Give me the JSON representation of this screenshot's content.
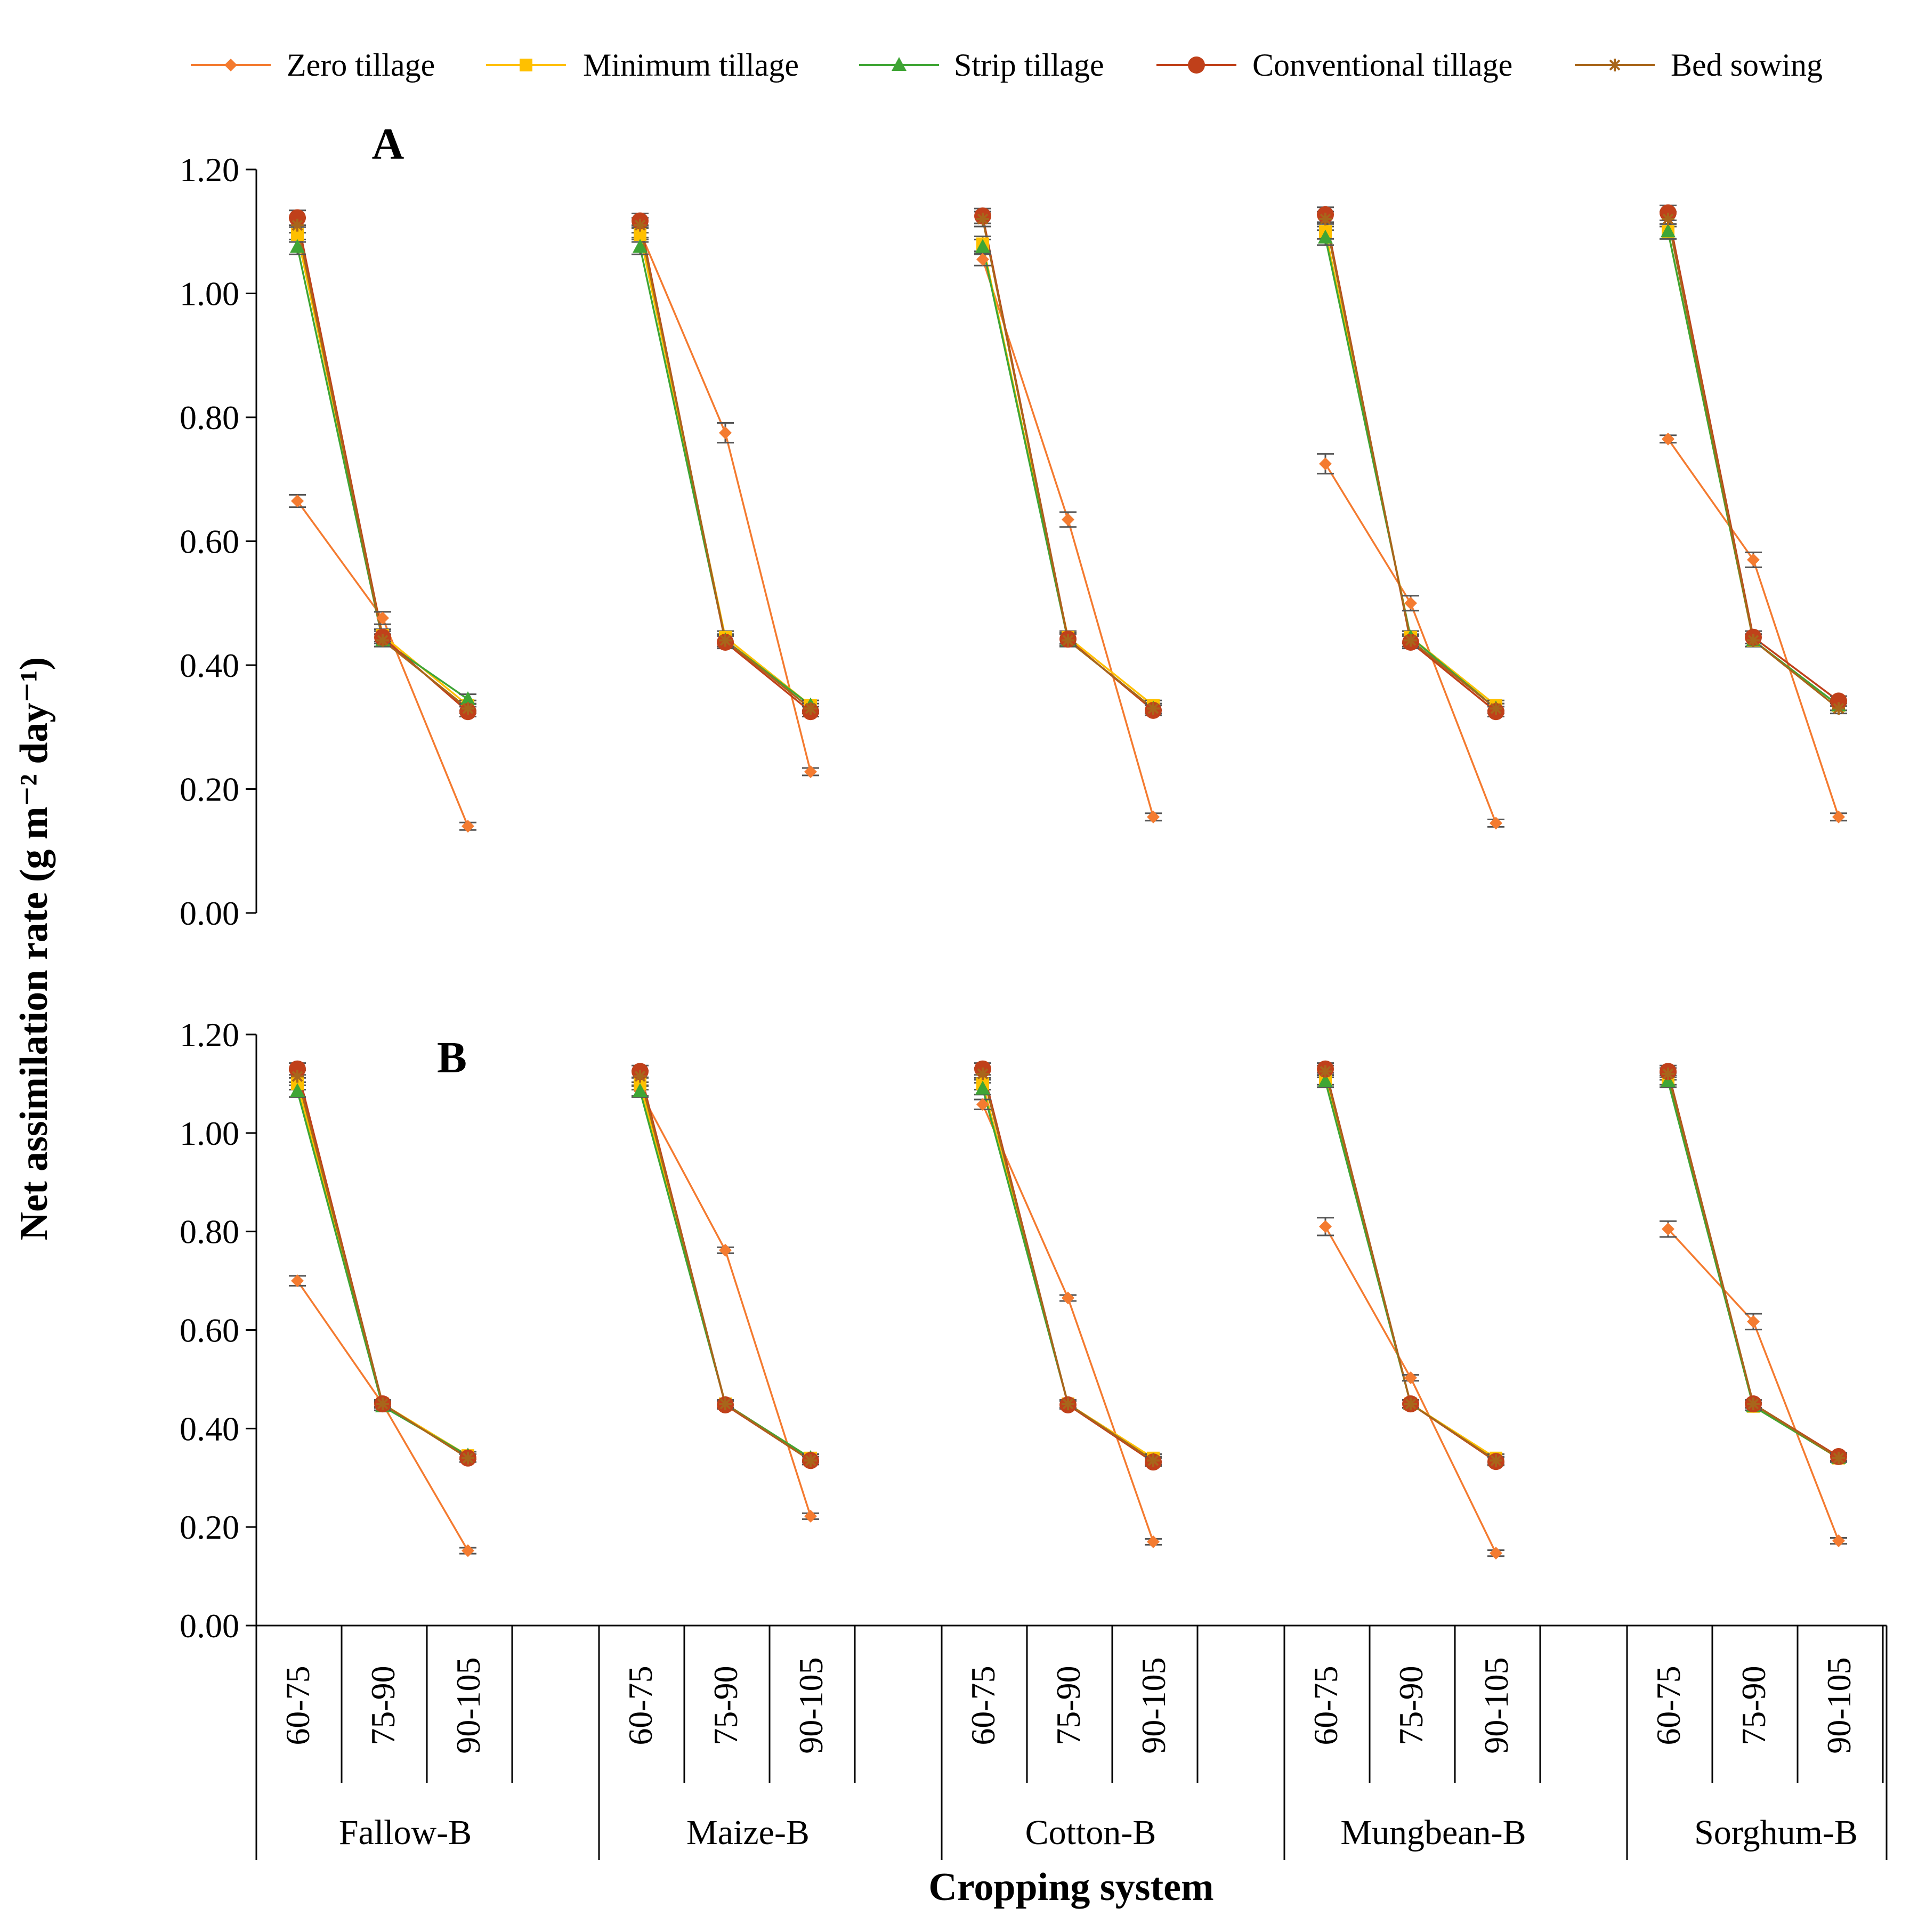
{
  "chart_data": {
    "type": "line",
    "ylabel": "Net assimilation rate (g m⁻² day⁻¹)",
    "xlabel": "Cropping system",
    "ylim": [
      0,
      1.2
    ],
    "y_ticks": [
      "0.00",
      "0.20",
      "0.40",
      "0.60",
      "0.80",
      "1.00",
      "1.20"
    ],
    "grid": false,
    "legend_position": "top",
    "groups": [
      "Fallow-B",
      "Maize-B",
      "Cotton-B",
      "Mungbean-B",
      "Sorghum-B"
    ],
    "categories": [
      "60-75",
      "75-90",
      "90-105"
    ],
    "series_styles": [
      {
        "name": "Zero tillage",
        "color": "#F47B30",
        "marker": "diamond"
      },
      {
        "name": "Minimum tillage",
        "color": "#FFC000",
        "marker": "square"
      },
      {
        "name": "Strip tillage",
        "color": "#3FA535",
        "marker": "triangle"
      },
      {
        "name": "Conventional tillage",
        "color": "#C0401A",
        "marker": "circle"
      },
      {
        "name": "Bed sowing",
        "color": "#A8661B",
        "marker": "star"
      }
    ],
    "panels": [
      {
        "label": "A",
        "series": [
          {
            "name": "Zero tillage",
            "values": [
              [
                0.665,
                0.476,
                0.14
              ],
              [
                1.1,
                0.775,
                0.228
              ],
              [
                1.055,
                0.635,
                0.155
              ],
              [
                0.725,
                0.5,
                0.145
              ],
              [
                0.765,
                0.57,
                0.155
              ]
            ],
            "errors": [
              [
                0.01,
                0.01,
                0.006
              ],
              [
                0.01,
                0.016,
                0.006
              ],
              [
                0.01,
                0.012,
                0.006
              ],
              [
                0.016,
                0.012,
                0.006
              ],
              [
                0.006,
                0.012,
                0.006
              ]
            ]
          },
          {
            "name": "Minimum tillage",
            "values": [
              [
                1.095,
                0.448,
                0.335
              ],
              [
                1.095,
                0.445,
                0.335
              ],
              [
                1.08,
                0.445,
                0.335
              ],
              [
                1.1,
                0.445,
                0.335
              ],
              [
                1.1,
                0.44,
                0.335
              ]
            ],
            "errors": [
              [
                0.012,
                0.01,
                0.008
              ],
              [
                0.012,
                0.01,
                0.008
              ],
              [
                0.012,
                0.01,
                0.008
              ],
              [
                0.012,
                0.01,
                0.008
              ],
              [
                0.012,
                0.01,
                0.008
              ]
            ]
          },
          {
            "name": "Strip tillage",
            "values": [
              [
                1.075,
                0.44,
                0.345
              ],
              [
                1.075,
                0.44,
                0.335
              ],
              [
                1.075,
                0.44,
                0.33
              ],
              [
                1.09,
                0.445,
                0.33
              ],
              [
                1.1,
                0.44,
                0.335
              ]
            ],
            "errors": [
              [
                0.012,
                0.01,
                0.008
              ],
              [
                0.012,
                0.01,
                0.008
              ],
              [
                0.012,
                0.01,
                0.008
              ],
              [
                0.012,
                0.01,
                0.008
              ],
              [
                0.012,
                0.01,
                0.008
              ]
            ]
          },
          {
            "name": "Conventional tillage",
            "values": [
              [
                1.122,
                0.445,
                0.325
              ],
              [
                1.117,
                0.437,
                0.325
              ],
              [
                1.125,
                0.442,
                0.327
              ],
              [
                1.127,
                0.437,
                0.325
              ],
              [
                1.13,
                0.445,
                0.342
              ]
            ],
            "errors": [
              [
                0.012,
                0.01,
                0.008
              ],
              [
                0.012,
                0.01,
                0.008
              ],
              [
                0.012,
                0.01,
                0.008
              ],
              [
                0.012,
                0.01,
                0.008
              ],
              [
                0.012,
                0.01,
                0.008
              ]
            ]
          },
          {
            "name": "Bed sowing",
            "values": [
              [
                1.11,
                0.44,
                0.33
              ],
              [
                1.11,
                0.44,
                0.33
              ],
              [
                1.12,
                0.44,
                0.33
              ],
              [
                1.12,
                0.44,
                0.33
              ],
              [
                1.12,
                0.44,
                0.33
              ]
            ],
            "errors": [
              [
                0.012,
                0.01,
                0.008
              ],
              [
                0.012,
                0.01,
                0.008
              ],
              [
                0.012,
                0.01,
                0.008
              ],
              [
                0.012,
                0.01,
                0.008
              ],
              [
                0.012,
                0.01,
                0.008
              ]
            ]
          }
        ]
      },
      {
        "label": "B",
        "series": [
          {
            "name": "Zero tillage",
            "values": [
              [
                0.7,
                0.45,
                0.152
              ],
              [
                1.085,
                0.762,
                0.222
              ],
              [
                1.058,
                0.665,
                0.17
              ],
              [
                0.81,
                0.503,
                0.147
              ],
              [
                0.805,
                0.617,
                0.172
              ]
            ],
            "errors": [
              [
                0.01,
                0.006,
                0.006
              ],
              [
                0.01,
                0.006,
                0.006
              ],
              [
                0.01,
                0.006,
                0.006
              ],
              [
                0.018,
                0.006,
                0.006
              ],
              [
                0.016,
                0.016,
                0.006
              ]
            ]
          },
          {
            "name": "Minimum tillage",
            "values": [
              [
                1.1,
                0.45,
                0.345
              ],
              [
                1.1,
                0.45,
                0.34
              ],
              [
                1.1,
                0.45,
                0.34
              ],
              [
                1.11,
                0.45,
                0.34
              ],
              [
                1.11,
                0.445,
                0.34
              ]
            ],
            "errors": [
              [
                0.012,
                0.008,
                0.008
              ],
              [
                0.012,
                0.008,
                0.008
              ],
              [
                0.012,
                0.008,
                0.008
              ],
              [
                0.012,
                0.008,
                0.008
              ],
              [
                0.012,
                0.008,
                0.008
              ]
            ]
          },
          {
            "name": "Strip tillage",
            "values": [
              [
                1.085,
                0.445,
                0.345
              ],
              [
                1.085,
                0.45,
                0.34
              ],
              [
                1.09,
                0.45,
                0.335
              ],
              [
                1.105,
                0.45,
                0.335
              ],
              [
                1.105,
                0.445,
                0.34
              ]
            ],
            "errors": [
              [
                0.012,
                0.008,
                0.008
              ],
              [
                0.012,
                0.008,
                0.008
              ],
              [
                0.012,
                0.008,
                0.008
              ],
              [
                0.012,
                0.008,
                0.008
              ],
              [
                0.012,
                0.008,
                0.008
              ]
            ]
          },
          {
            "name": "Conventional tillage",
            "values": [
              [
                1.13,
                0.45,
                0.34
              ],
              [
                1.125,
                0.448,
                0.335
              ],
              [
                1.13,
                0.448,
                0.332
              ],
              [
                1.13,
                0.45,
                0.333
              ],
              [
                1.125,
                0.45,
                0.343
              ]
            ],
            "errors": [
              [
                0.012,
                0.008,
                0.008
              ],
              [
                0.012,
                0.008,
                0.008
              ],
              [
                0.012,
                0.008,
                0.008
              ],
              [
                0.012,
                0.008,
                0.008
              ],
              [
                0.012,
                0.008,
                0.008
              ]
            ]
          },
          {
            "name": "Bed sowing",
            "values": [
              [
                1.115,
                0.45,
                0.34
              ],
              [
                1.115,
                0.45,
                0.335
              ],
              [
                1.12,
                0.45,
                0.335
              ],
              [
                1.125,
                0.45,
                0.335
              ],
              [
                1.12,
                0.45,
                0.34
              ]
            ],
            "errors": [
              [
                0.012,
                0.008,
                0.008
              ],
              [
                0.012,
                0.008,
                0.008
              ],
              [
                0.012,
                0.008,
                0.008
              ],
              [
                0.012,
                0.008,
                0.008
              ],
              [
                0.012,
                0.008,
                0.008
              ]
            ]
          }
        ]
      }
    ]
  }
}
